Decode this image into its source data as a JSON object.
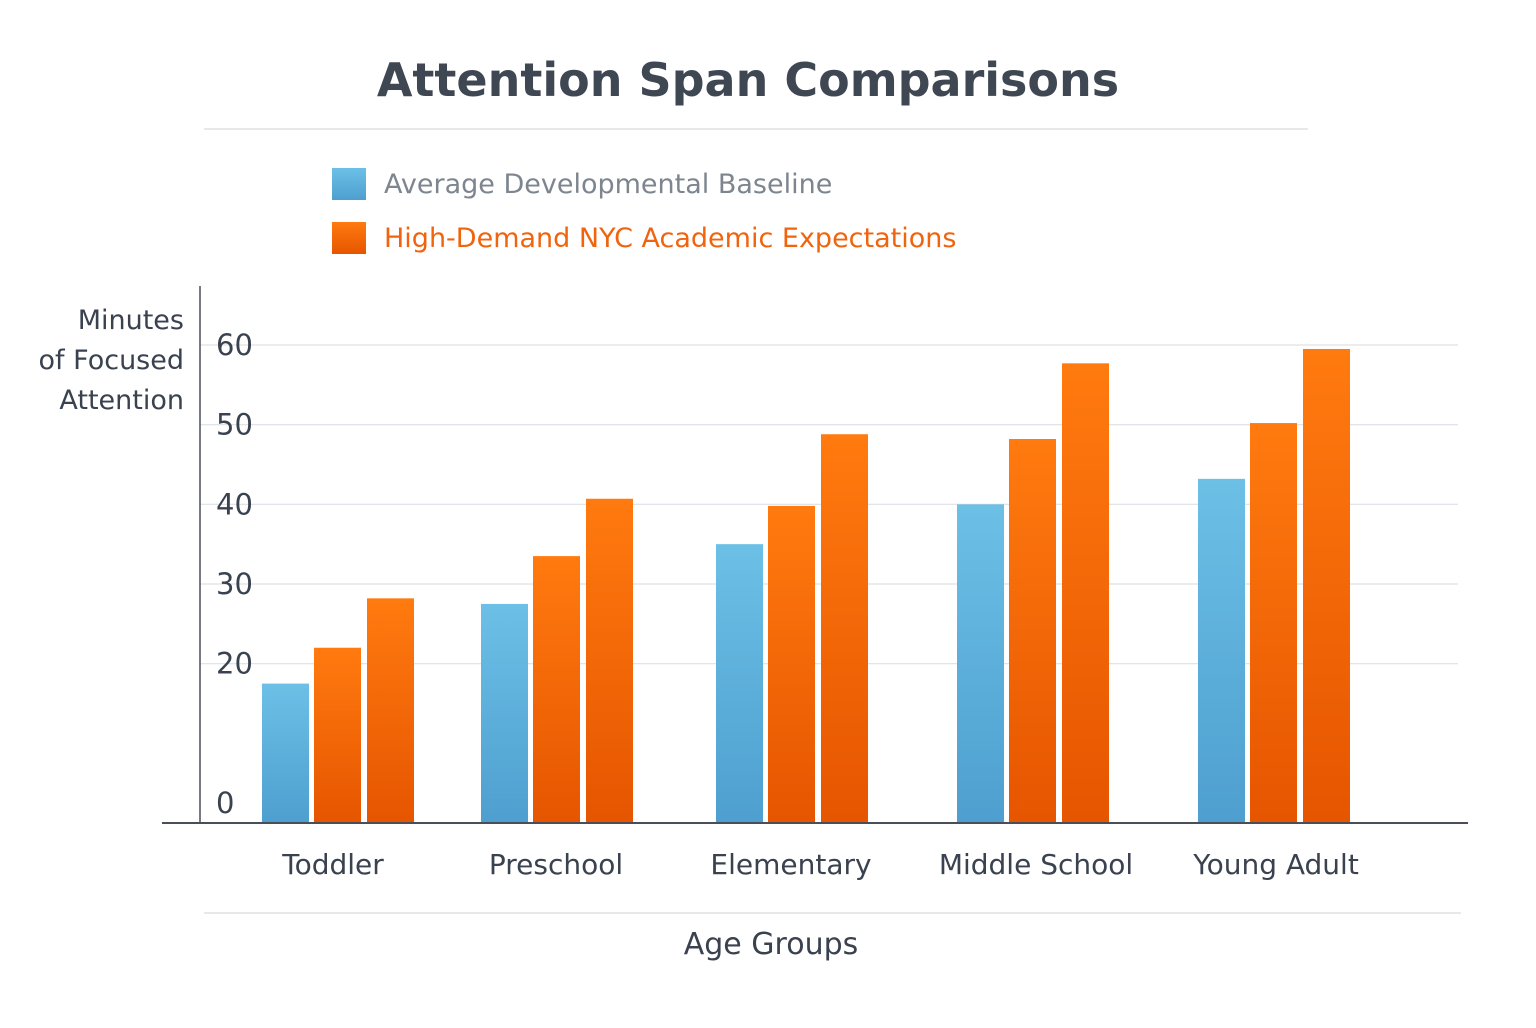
{
  "colors": {
    "background": "#ffffff",
    "title": "#3f4753",
    "axis_text": "#3a4250",
    "legend_baseline_text": "#7d858f",
    "legend_high_text": "#f0640e",
    "gridline": "#dde0e4",
    "axis_line": "#4a4f57",
    "series_baseline_top": "#6cc0e6",
    "series_baseline_bottom": "#4e9fcf",
    "series_high_top": "#ff7a0f",
    "series_high_bottom": "#e65500"
  },
  "chart_data": {
    "type": "bar",
    "title": "Attention Span Comparisons",
    "xlabel": "Age Groups",
    "ylabel": [
      "Minutes",
      "of Focused",
      "Attention"
    ],
    "ylim": [
      0,
      60
    ],
    "y_ticks": [
      0,
      20,
      30,
      40,
      50,
      60
    ],
    "grid": true,
    "legend_position": "top-left",
    "legend": [
      {
        "label": "Average Developmental Baseline",
        "color_key": "baseline"
      },
      {
        "label": "High-Demand NYC Academic Expectations",
        "color_key": "high"
      }
    ],
    "categories": [
      "Toddler",
      "Preschool",
      "Elementary",
      "Middle School",
      "Young Adult"
    ],
    "series": [
      {
        "name": "Average Developmental Baseline",
        "color_key": "baseline",
        "values": [
          17.5,
          27.5,
          35,
          40,
          43.2
        ]
      },
      {
        "name": "High-Demand NYC Academic Expectations",
        "color_key": "high",
        "values": [
          22,
          33.5,
          39.8,
          48.2,
          50.2
        ]
      },
      {
        "name": "High-Demand NYC Academic Expectations",
        "color_key": "high",
        "values": [
          28.2,
          40.7,
          48.8,
          57.7,
          59.5
        ]
      }
    ]
  }
}
